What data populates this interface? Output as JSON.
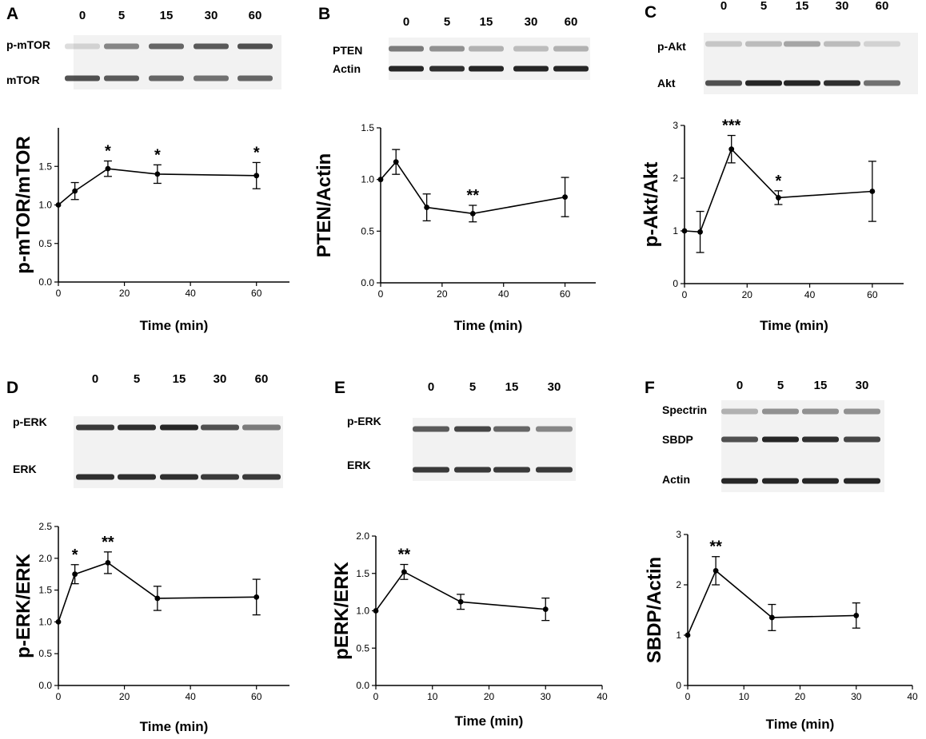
{
  "figure": {
    "x_title": "Time (min)",
    "colors": {
      "line": "#000000",
      "band": "#1a1a1a",
      "blot_bg": "#f2f2f2"
    }
  },
  "chart_data": [
    {
      "panel": "A",
      "type": "line",
      "ylabel": "p-mTOR/mTOR",
      "xlabel": "Time (min)",
      "xlim": [
        0,
        70
      ],
      "ylim": [
        0,
        2.0
      ],
      "xticks": [
        0,
        20,
        40,
        60
      ],
      "yticks": [
        0.0,
        0.5,
        1.0,
        1.5
      ],
      "x": [
        0,
        5,
        15,
        30,
        60
      ],
      "y": [
        1.0,
        1.18,
        1.47,
        1.4,
        1.38
      ],
      "err": [
        0,
        0.11,
        0.1,
        0.12,
        0.17
      ],
      "annotations": [
        "",
        "",
        "*",
        "*",
        "*"
      ],
      "blot": {
        "lanes": [
          "0",
          "5",
          "15",
          "30",
          "60"
        ],
        "rows": [
          {
            "label": "p-mTOR",
            "intensity": [
              0.15,
              0.5,
              0.65,
              0.7,
              0.75
            ]
          },
          {
            "label": "mTOR",
            "intensity": [
              0.75,
              0.7,
              0.65,
              0.6,
              0.65
            ]
          }
        ]
      }
    },
    {
      "panel": "B",
      "type": "line",
      "ylabel": "PTEN/Actin",
      "xlabel": "Time (min)",
      "xlim": [
        0,
        70
      ],
      "ylim": [
        0,
        1.5
      ],
      "xticks": [
        0,
        20,
        40,
        60
      ],
      "yticks": [
        0.0,
        0.5,
        1.0,
        1.5
      ],
      "x": [
        0,
        5,
        15,
        30,
        60
      ],
      "y": [
        1.0,
        1.17,
        0.73,
        0.67,
        0.83
      ],
      "err": [
        0,
        0.12,
        0.13,
        0.08,
        0.19
      ],
      "annotations": [
        "",
        "",
        "",
        "**",
        ""
      ],
      "blot": {
        "lanes": [
          "0",
          "5",
          "15",
          "30",
          "60"
        ],
        "rows": [
          {
            "label": "PTEN",
            "intensity": [
              0.55,
              0.45,
              0.3,
              0.25,
              0.3
            ]
          },
          {
            "label": "Actin",
            "intensity": [
              0.95,
              0.9,
              0.95,
              0.95,
              0.95
            ]
          }
        ]
      }
    },
    {
      "panel": "C",
      "type": "line",
      "ylabel": "p-Akt/Akt",
      "xlabel": "Time (min)",
      "xlim": [
        0,
        70
      ],
      "ylim": [
        0,
        3
      ],
      "xticks": [
        0,
        20,
        40,
        60
      ],
      "yticks": [
        0,
        1,
        2,
        3
      ],
      "x": [
        0,
        5,
        15,
        30,
        60
      ],
      "y": [
        1.0,
        0.98,
        2.55,
        1.63,
        1.75
      ],
      "err": [
        0,
        0.39,
        0.26,
        0.13,
        0.57
      ],
      "annotations": [
        "",
        "",
        "***",
        "*",
        ""
      ],
      "blot": {
        "lanes": [
          "0",
          "5",
          "15",
          "30",
          "60"
        ],
        "rows": [
          {
            "label": "p-Akt",
            "intensity": [
              0.2,
              0.25,
              0.35,
              0.25,
              0.15
            ]
          },
          {
            "label": "Akt",
            "intensity": [
              0.75,
              0.95,
              0.95,
              0.9,
              0.6
            ]
          }
        ]
      }
    },
    {
      "panel": "D",
      "type": "line",
      "ylabel": "p-ERK/ERK",
      "xlabel": "Time (min)",
      "xlim": [
        0,
        70
      ],
      "ylim": [
        0,
        2.5
      ],
      "xticks": [
        0,
        20,
        40,
        60
      ],
      "yticks": [
        0.0,
        0.5,
        1.0,
        1.5,
        2.0,
        2.5
      ],
      "x": [
        0,
        5,
        15,
        30,
        60
      ],
      "y": [
        1.0,
        1.75,
        1.93,
        1.37,
        1.39
      ],
      "err": [
        0,
        0.15,
        0.17,
        0.19,
        0.28
      ],
      "annotations": [
        "",
        "*",
        "**",
        "",
        ""
      ],
      "blot": {
        "lanes": [
          "0",
          "5",
          "15",
          "30",
          "60"
        ],
        "rows": [
          {
            "label": "p-ERK",
            "intensity": [
              0.85,
              0.9,
              0.95,
              0.75,
              0.55
            ]
          },
          {
            "label": "ERK",
            "intensity": [
              0.9,
              0.9,
              0.9,
              0.85,
              0.85
            ]
          }
        ]
      }
    },
    {
      "panel": "E",
      "type": "line",
      "ylabel": "pERK/ERK",
      "xlabel": "Time (min)",
      "xlim": [
        0,
        40
      ],
      "ylim": [
        0,
        2.0
      ],
      "xticks": [
        0,
        10,
        20,
        30,
        40
      ],
      "yticks": [
        0.0,
        0.5,
        1.0,
        1.5,
        2.0
      ],
      "x": [
        0,
        5,
        15,
        30
      ],
      "y": [
        1.0,
        1.52,
        1.12,
        1.02
      ],
      "err": [
        0,
        0.1,
        0.1,
        0.15
      ],
      "annotations": [
        "",
        "**",
        "",
        ""
      ],
      "blot": {
        "lanes": [
          "0",
          "5",
          "15",
          "30"
        ],
        "rows": [
          {
            "label": "p-ERK",
            "intensity": [
              0.7,
              0.8,
              0.65,
              0.5
            ]
          },
          {
            "label": "ERK",
            "intensity": [
              0.85,
              0.85,
              0.85,
              0.85
            ]
          }
        ]
      }
    },
    {
      "panel": "F",
      "type": "line",
      "ylabel": "SBDP/Actin",
      "xlabel": "Time (min)",
      "xlim": [
        0,
        40
      ],
      "ylim": [
        0,
        3
      ],
      "xticks": [
        0,
        10,
        20,
        30,
        40
      ],
      "yticks": [
        0,
        1,
        2,
        3
      ],
      "x": [
        0,
        5,
        15,
        30
      ],
      "y": [
        1.0,
        2.28,
        1.35,
        1.39
      ],
      "err": [
        0,
        0.28,
        0.26,
        0.25
      ],
      "annotations": [
        "",
        "**",
        "",
        ""
      ],
      "blot": {
        "lanes": [
          "0",
          "5",
          "15",
          "30"
        ],
        "rows": [
          {
            "label": "Spectrin",
            "intensity": [
              0.3,
              0.45,
              0.45,
              0.45
            ]
          },
          {
            "label": "SBDP",
            "intensity": [
              0.75,
              0.95,
              0.9,
              0.8
            ]
          },
          {
            "label": "Actin",
            "intensity": [
              0.95,
              0.95,
              0.95,
              0.95
            ]
          }
        ]
      }
    }
  ]
}
